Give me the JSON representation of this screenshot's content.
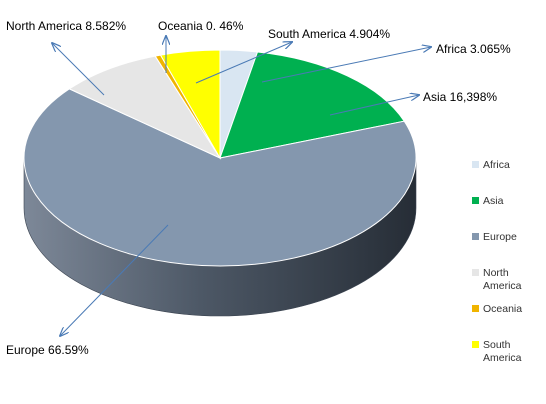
{
  "chart_data": {
    "type": "pie",
    "style": "3d",
    "legend_position": "right",
    "slices": [
      {
        "name": "Africa",
        "legend_label": [
          "Africa"
        ],
        "value": 3.065,
        "callout": "Africa 3.065%",
        "color": "#d9e6f2"
      },
      {
        "name": "Asia",
        "legend_label": [
          "Asia"
        ],
        "value": 16.398,
        "callout": "Asia 16,398%",
        "color": "#00b050"
      },
      {
        "name": "Europe",
        "legend_label": [
          "Europe"
        ],
        "value": 66.59,
        "callout": "Europe 66.59%",
        "color": "#8497ae"
      },
      {
        "name": "North America",
        "legend_label": [
          "North",
          "America"
        ],
        "value": 8.582,
        "callout": "North America 8.582%",
        "color": "#e6e6e6"
      },
      {
        "name": "Oceania",
        "legend_label": [
          "Oceania"
        ],
        "value": 0.46,
        "callout": "Oceania 0. 46%",
        "color": "#f0b400"
      },
      {
        "name": "South America",
        "legend_label": [
          "South",
          "America"
        ],
        "value": 4.904,
        "callout": "South America 4.904%",
        "color": "#ffff00"
      }
    ],
    "colors": {
      "arrow": "#4a7ab5"
    }
  }
}
